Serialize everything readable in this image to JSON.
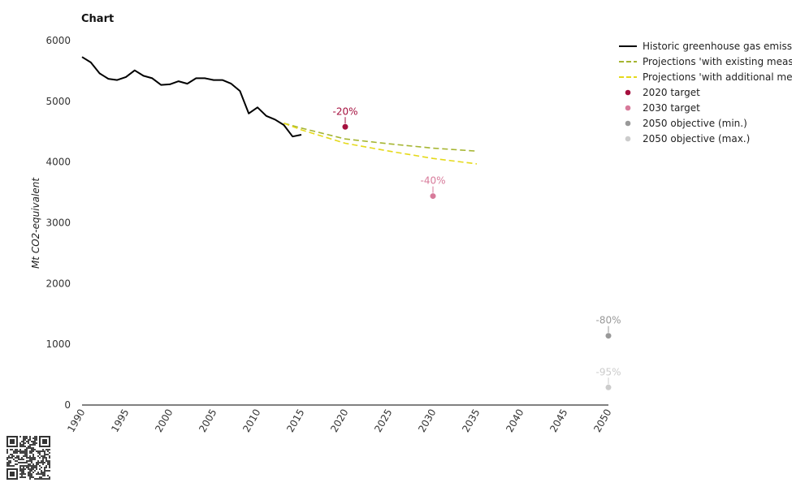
{
  "chart_data": {
    "type": "line",
    "title": "Chart",
    "ylabel": "Mt CO2-equivalent",
    "xlabel": "",
    "xlim": [
      1990,
      2050
    ],
    "ylim": [
      0,
      6000
    ],
    "x_ticks": [
      "1990",
      "1995",
      "2000",
      "2005",
      "2010",
      "2015",
      "2020",
      "2025",
      "2030",
      "2035",
      "2040",
      "2045",
      "2050"
    ],
    "y_ticks": [
      "0",
      "1000",
      "2000",
      "3000",
      "4000",
      "5000",
      "6000"
    ],
    "series": [
      {
        "name": "Historic greenhouse gas emissions",
        "color": "#000000",
        "style": "solid",
        "x": [
          1990,
          1991,
          1992,
          1993,
          1994,
          1995,
          1996,
          1997,
          1998,
          1999,
          2000,
          2001,
          2002,
          2003,
          2004,
          2005,
          2006,
          2007,
          2008,
          2009,
          2010,
          2011,
          2012,
          2013,
          2014,
          2015
        ],
        "y": [
          5730,
          5640,
          5460,
          5370,
          5350,
          5400,
          5510,
          5420,
          5380,
          5270,
          5280,
          5330,
          5290,
          5380,
          5380,
          5350,
          5350,
          5290,
          5170,
          4800,
          4900,
          4760,
          4700,
          4610,
          4420,
          4450
        ]
      },
      {
        "name": "Projections 'with existing measures'",
        "color": "#a5b530",
        "style": "dashed",
        "x": [
          2013,
          2015,
          2020,
          2025,
          2030,
          2035
        ],
        "y": [
          4640,
          4560,
          4380,
          4300,
          4230,
          4180
        ]
      },
      {
        "name": "Projections 'with additional measures'",
        "color": "#e5d91a",
        "style": "dashed",
        "x": [
          2013,
          2015,
          2020,
          2025,
          2030,
          2035
        ],
        "y": [
          4640,
          4530,
          4310,
          4180,
          4060,
          3970
        ]
      }
    ],
    "points": [
      {
        "name": "2020 target",
        "color": "#a50f3e",
        "x": 2020,
        "y": 4580,
        "label": "-20%"
      },
      {
        "name": "2030 target",
        "color": "#d77a9a",
        "x": 2030,
        "y": 3440,
        "label": "-40%"
      },
      {
        "name": "2050 objective (min.)",
        "color": "#999999",
        "x": 2050,
        "y": 1140,
        "label": "-80%"
      },
      {
        "name": "2050 objective (max.)",
        "color": "#cccccc",
        "x": 2050,
        "y": 290,
        "label": "-95%"
      }
    ],
    "legend": {
      "position": "top-right",
      "items": [
        {
          "label": "Historic greenhouse gas emissions",
          "kind": "line",
          "color": "#000000"
        },
        {
          "label": "Projections 'with existing measures'",
          "kind": "dash",
          "color": "#a5b530"
        },
        {
          "label": "Projections 'with additional measures'",
          "kind": "dash",
          "color": "#e5d91a"
        },
        {
          "label": "2020 target",
          "kind": "dot",
          "color": "#a50f3e"
        },
        {
          "label": "2030 target",
          "kind": "dot",
          "color": "#d77a9a"
        },
        {
          "label": "2050 objective (min.)",
          "kind": "dot",
          "color": "#999999"
        },
        {
          "label": "2050 objective (max.)",
          "kind": "dot",
          "color": "#cccccc"
        }
      ]
    },
    "grid": false
  }
}
